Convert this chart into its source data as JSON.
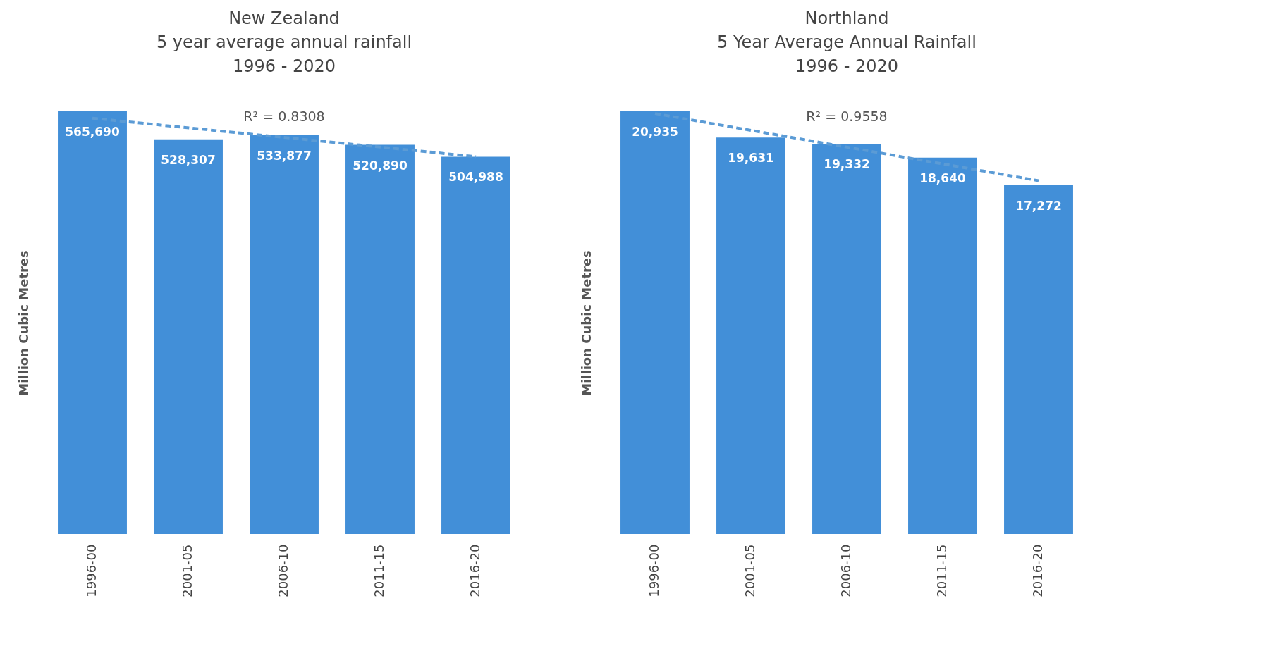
{
  "chart_data": [
    {
      "type": "bar",
      "title": "New Zealand\n5 year average annual rainfall\n1996 - 2020",
      "ylabel": "Million Cubic Metres",
      "categories": [
        "1996-00",
        "2001-05",
        "2006-10",
        "2011-15",
        "2016-20"
      ],
      "series": [
        {
          "type": "bar",
          "color": "#428fd8",
          "values": [
            565690,
            528307,
            533877,
            520890,
            504988
          ],
          "value_labels": [
            "565,690",
            "528,307",
            "533,877",
            "520,890",
            "504,988"
          ]
        },
        {
          "type": "line",
          "color": "#5b9bd5",
          "line_style": "dashed",
          "x": [
            "1996-00",
            "2016-20"
          ],
          "values": [
            556500,
            505000
          ]
        }
      ],
      "annotations": [
        "R² = 0.8308"
      ]
    },
    {
      "type": "bar",
      "title": "Northland\n5 Year Average Annual Rainfall\n1996 - 2020",
      "ylabel": "Million Cubic Metres",
      "categories": [
        "1996-00",
        "2001-05",
        "2006-10",
        "2011-15",
        "2016-20"
      ],
      "series": [
        {
          "type": "bar",
          "color": "#428fd8",
          "values": [
            20935,
            19631,
            19332,
            18640,
            17272
          ],
          "value_labels": [
            "20,935",
            "19,631",
            "19,332",
            "18,640",
            "17,272"
          ]
        },
        {
          "type": "line",
          "color": "#5b9bd5",
          "line_style": "dashed",
          "x": [
            "1996-00",
            "2016-20"
          ],
          "values": [
            20825,
            17499
          ]
        }
      ],
      "annotations": [
        "R² = 0.9558"
      ]
    }
  ]
}
